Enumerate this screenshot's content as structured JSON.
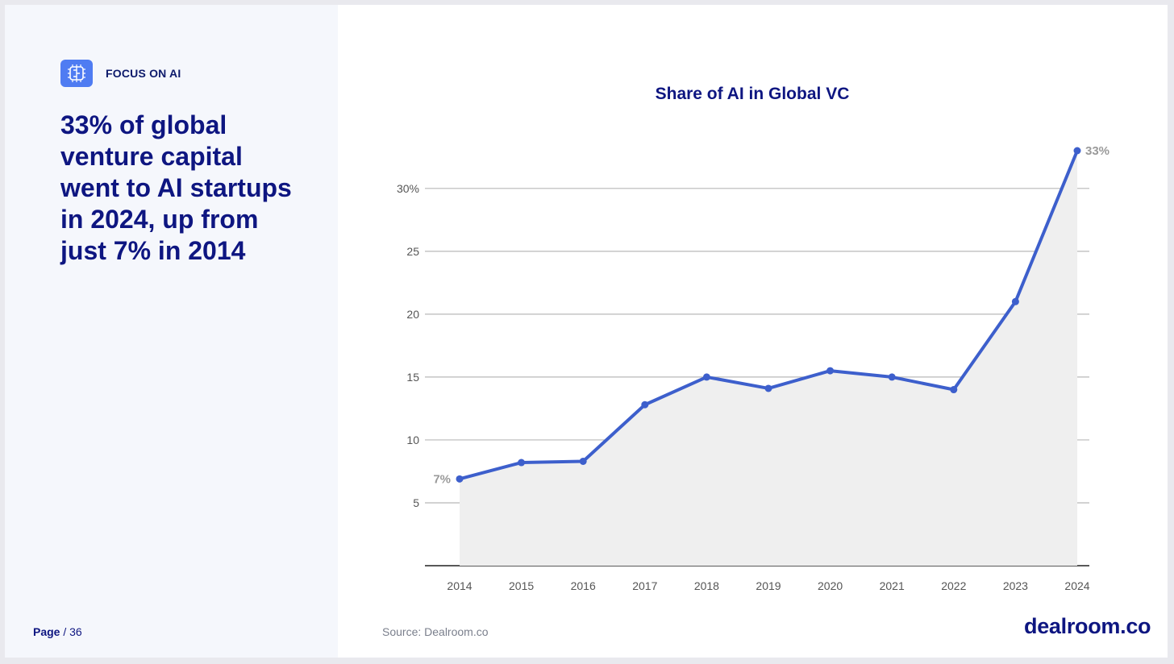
{
  "tag": {
    "label": "FOCUS ON AI",
    "icon": "ai-chip-icon",
    "icon_color": "#4f7cf2"
  },
  "headline": "33% of global venture capital went to AI startups in 2024, up from just 7% in 2014",
  "footer": {
    "page_label": "Page",
    "page_count": "/ 36",
    "source": "Source: Dealroom.co",
    "brand": "dealroom.co"
  },
  "colors": {
    "navy": "#0e1681",
    "line": "#3d5fcc",
    "area": "#efefef"
  },
  "chart_data": {
    "type": "area",
    "title": "Share of AI in Global VC",
    "xlabel": "",
    "ylabel": "",
    "x": [
      "2014",
      "2015",
      "2016",
      "2017",
      "2018",
      "2019",
      "2020",
      "2021",
      "2022",
      "2023",
      "2024"
    ],
    "series": [
      {
        "values": [
          6.9,
          8.2,
          8.3,
          12.8,
          15.0,
          14.1,
          15.5,
          15.0,
          14.0,
          21.0,
          33.0
        ]
      }
    ],
    "ylim": [
      0,
      33
    ],
    "yticks": [
      {
        "value": 5,
        "label": "5"
      },
      {
        "value": 10,
        "label": "10"
      },
      {
        "value": 15,
        "label": "15"
      },
      {
        "value": 20,
        "label": "20"
      },
      {
        "value": 25,
        "label": "25"
      },
      {
        "value": 30,
        "label": "30%"
      }
    ],
    "data_labels": [
      {
        "index": 0,
        "text": "7%"
      },
      {
        "index": 10,
        "text": "33%"
      }
    ],
    "grid": true
  }
}
